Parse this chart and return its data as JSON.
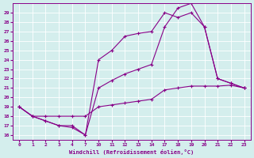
{
  "xlabel": "Windchill (Refroidissement éolien,°C)",
  "bg_color": "#d4eeed",
  "line_color": "#880088",
  "xtick_labels": [
    "0",
    "1",
    "2",
    "3",
    "4",
    "7",
    "1011121314",
    "17181920212223"
  ],
  "xtick_labels_all": [
    "0",
    "1",
    "2",
    "3",
    "4",
    "7",
    "10",
    "11",
    "12",
    "13",
    "14",
    "17",
    "18",
    "19",
    "20",
    "21",
    "22",
    "23"
  ],
  "ytick_labels": [
    "16",
    "17",
    "18",
    "19",
    "20",
    "21",
    "22",
    "23",
    "24",
    "25",
    "26",
    "27",
    "28",
    "29"
  ],
  "ylim": [
    15.5,
    30.0
  ],
  "series1_y": [
    19,
    18,
    17.5,
    17.0,
    17.0,
    16.0,
    24.0,
    25.0,
    26.5,
    26.8,
    27.0,
    29.0,
    28.5,
    29.0,
    27.5,
    22.0,
    21.5,
    21.0
  ],
  "series2_y": [
    19,
    18,
    17.5,
    17.0,
    16.8,
    16.0,
    21.0,
    21.8,
    22.5,
    23.0,
    23.5,
    27.5,
    29.5,
    30.0,
    27.5,
    22.0,
    21.5,
    21.0
  ],
  "series3_y": [
    19.0,
    18.0,
    18.0,
    18.0,
    18.0,
    18.0,
    19.0,
    19.2,
    19.4,
    19.6,
    19.8,
    20.8,
    21.0,
    21.2,
    21.2,
    21.2,
    21.3,
    21.0
  ]
}
